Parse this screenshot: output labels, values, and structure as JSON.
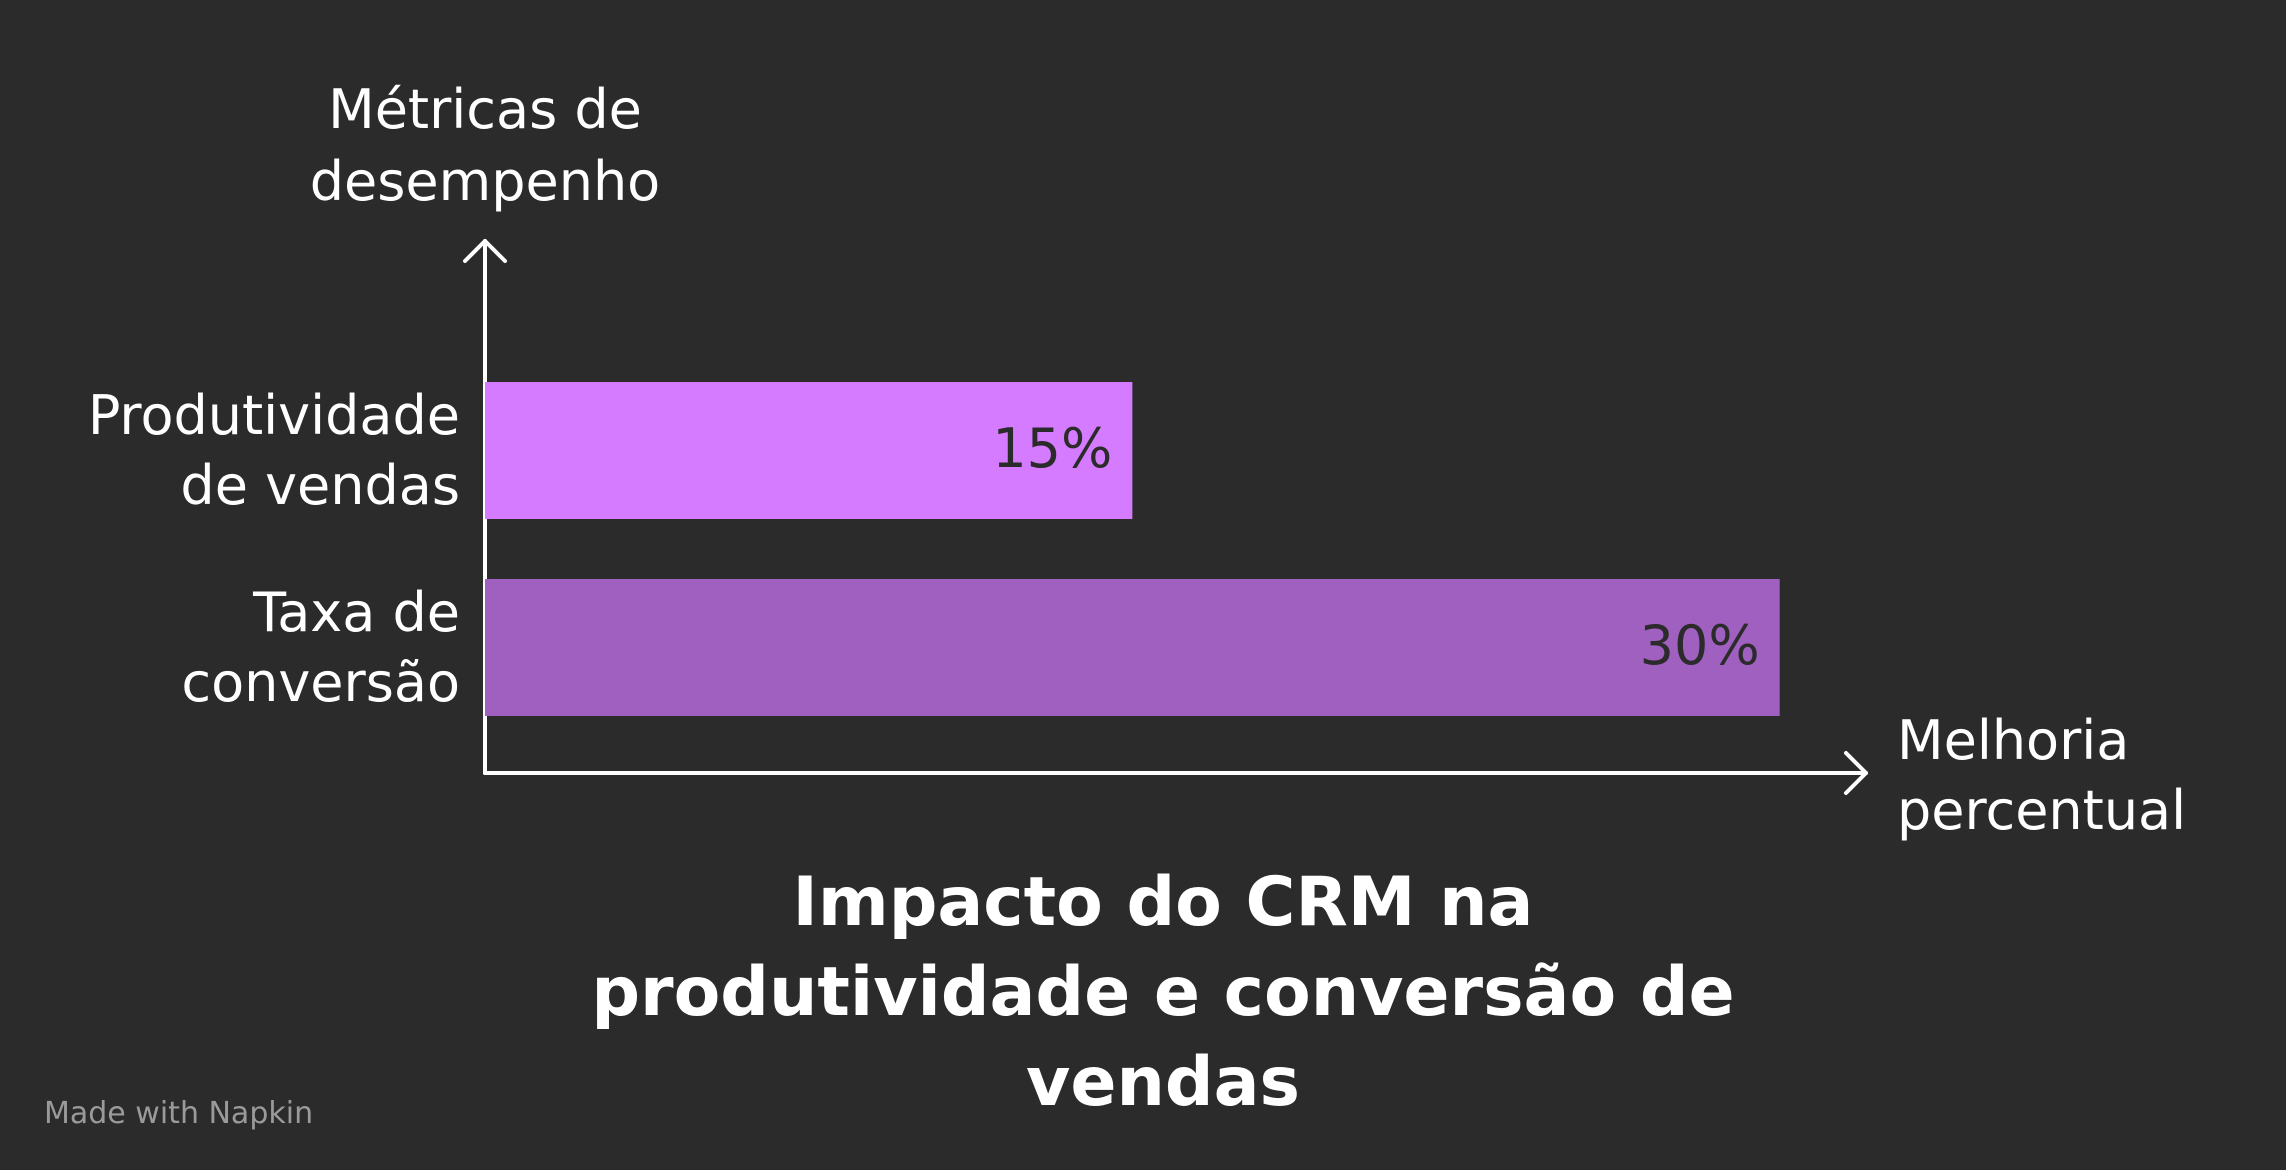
{
  "chart_data": {
    "type": "hbar",
    "title": "Impacto do CRM na\nprodutividade e conversão de\nvendas",
    "y_label": "Métricas de\ndesempenho",
    "x_label": "Melhoria\npercentual",
    "categories": [
      "Produtividade\nde vendas",
      "Taxa de\nconversão"
    ],
    "values": [
      15,
      30
    ],
    "value_labels": [
      "15%",
      "30%"
    ],
    "colors": [
      "#d57bff",
      "#a060c0"
    ],
    "xlim": [
      0,
      32
    ]
  },
  "footer": "Made with Napkin"
}
